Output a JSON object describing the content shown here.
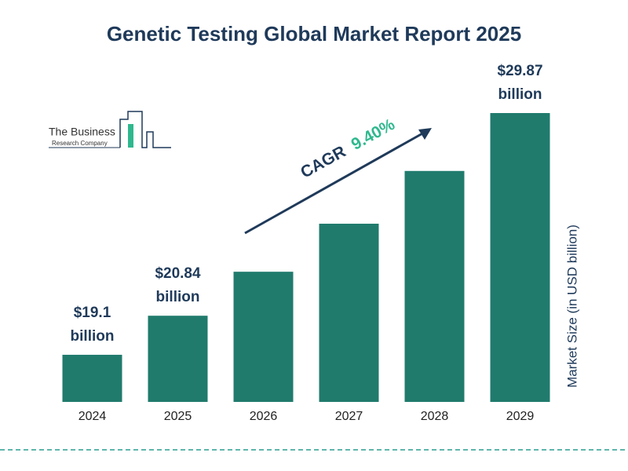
{
  "chart_data": {
    "type": "bar",
    "title": "Genetic Testing Global Market Report 2025",
    "categories": [
      "2024",
      "2025",
      "2026",
      "2027",
      "2028",
      "2029"
    ],
    "values": [
      19.1,
      20.84,
      22.8,
      24.94,
      27.29,
      29.87
    ],
    "value_labels": [
      "$19.1 billion",
      "$20.84 billion",
      null,
      null,
      null,
      "$29.87 billion"
    ],
    "color": "#207b6d",
    "ylim": [
      17,
      30.5
    ],
    "y_axis_label": "Market Size (in USD billion)",
    "annotation": {
      "label": "CAGR",
      "value": "9.40%"
    }
  },
  "logo": {
    "line1": "The Business",
    "line2": "Research Company"
  }
}
